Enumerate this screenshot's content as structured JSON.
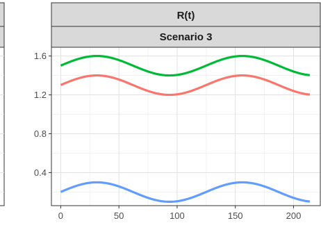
{
  "chart_data": {
    "type": "line",
    "strips": [
      "R(t)",
      "Scenario 3"
    ],
    "xlim": [
      -8,
      223
    ],
    "ylim": [
      0.06,
      1.69
    ],
    "x_ticks": [
      0,
      50,
      100,
      150,
      200
    ],
    "y_ticks": [
      0.4,
      0.8,
      1.2,
      1.6
    ],
    "grid": true,
    "series": [
      {
        "color": "#00ba38",
        "baseline": 1.5,
        "amplitude": 0.1,
        "period": 125,
        "x_start": 0,
        "x_end": 214
      },
      {
        "color": "#f8766d",
        "baseline": 1.3,
        "amplitude": 0.1,
        "period": 125,
        "x_start": 0,
        "x_end": 214
      },
      {
        "color": "#619cff",
        "baseline": 0.2,
        "amplitude": 0.1,
        "period": 125,
        "x_start": 0,
        "x_end": 214
      }
    ]
  },
  "left_panel": {
    "strips": [
      "",
      ""
    ]
  }
}
